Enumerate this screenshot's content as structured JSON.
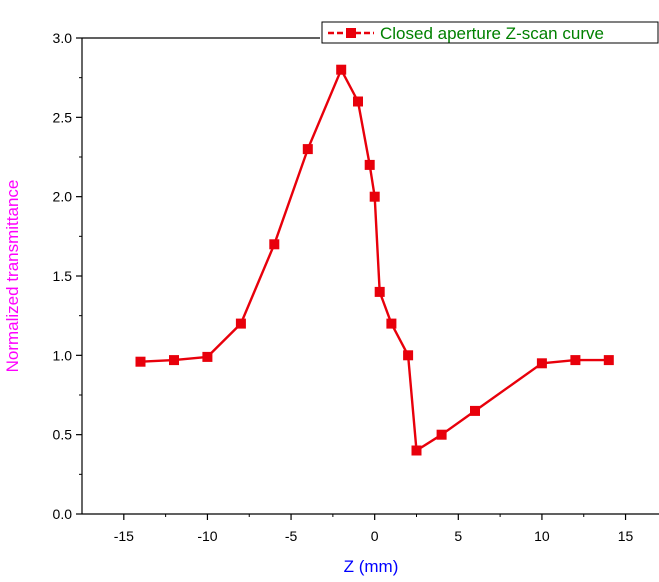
{
  "chart_data": {
    "type": "line",
    "xlabel": "Z (mm)",
    "ylabel": "Normalized transmittance",
    "xlim": [
      -17.5,
      17
    ],
    "ylim": [
      0.0,
      3.0
    ],
    "x_ticks": [
      "-15",
      "-10",
      "-5",
      "0",
      "5",
      "10",
      "15"
    ],
    "y_ticks": [
      "0.0",
      "0.5",
      "1.0",
      "1.5",
      "2.0",
      "2.5",
      "3.0"
    ],
    "grid": false,
    "legend_position": "top-right",
    "series": [
      {
        "name": "Closed aperture Z-scan curve",
        "color": "#e8000b",
        "marker": "square",
        "x": [
          -14,
          -12,
          -10,
          -8,
          -6,
          -4,
          -2,
          -1,
          -0.3,
          0,
          0.3,
          1,
          2,
          2.5,
          4,
          6,
          10,
          12,
          14
        ],
        "y": [
          0.96,
          0.97,
          0.99,
          1.2,
          1.7,
          2.3,
          2.8,
          2.6,
          2.2,
          2.0,
          1.4,
          1.2,
          1.0,
          0.4,
          0.5,
          0.65,
          0.95,
          0.97,
          0.97
        ]
      }
    ],
    "colors": {
      "xlabel": "#0000ff",
      "ylabel": "#ff00ff",
      "legend_text": "#008000"
    }
  }
}
